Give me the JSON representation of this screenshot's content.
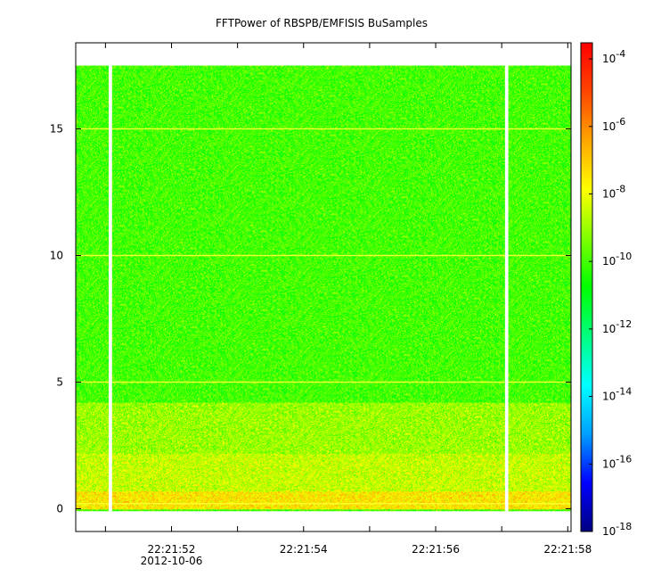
{
  "chart_data": {
    "type": "heatmap",
    "title": "FFTPower of RBSPB/EMFISIS  BuSamples",
    "xlabel": "",
    "ylabel": "",
    "x_ticks": [
      {
        "value": 0.0,
        "label": ""
      },
      {
        "value": 1.0,
        "label": "22:21:52",
        "sublabel": "2012-10-06"
      },
      {
        "value": 2.0,
        "label": ""
      },
      {
        "value": 3.0,
        "label": "22:21:54"
      },
      {
        "value": 4.0,
        "label": ""
      },
      {
        "value": 5.0,
        "label": "22:21:56"
      },
      {
        "value": 6.0,
        "label": ""
      },
      {
        "value": 7.0,
        "label": "22:21:58"
      }
    ],
    "xlim": [
      -0.45,
      7.05
    ],
    "y_ticks": [
      0,
      5,
      10,
      15
    ],
    "ylim": [
      -0.9,
      18.4
    ],
    "data_extent": {
      "x": [
        -0.45,
        7.05
      ],
      "y": [
        -0.1,
        17.5
      ]
    },
    "data_gaps_x": [
      [
        0.05,
        0.1
      ],
      [
        6.05,
        6.1
      ]
    ],
    "horizontal_lines_y": [
      0.2,
      5.0,
      10.0,
      15.0
    ],
    "value_bands": [
      {
        "y": [
          0.0,
          0.7
        ],
        "dominant": "orange-red",
        "log10_power": -7.5
      },
      {
        "y": [
          0.7,
          2.2
        ],
        "dominant": "yellow-orange",
        "log10_power": -8.5
      },
      {
        "y": [
          2.2,
          4.2
        ],
        "dominant": "yellow",
        "log10_power": -9.0
      },
      {
        "y": [
          4.2,
          17.5
        ],
        "dominant": "green",
        "log10_power": -10.0
      }
    ],
    "colorbar": {
      "scale": "log",
      "range": [
        1e-18,
        0.0003
      ],
      "ticks": [
        {
          "base": "10",
          "exp": "-4",
          "value": 0.0001
        },
        {
          "base": "10",
          "exp": "-6",
          "value": 1e-06
        },
        {
          "base": "10",
          "exp": "-8",
          "value": 1e-08
        },
        {
          "base": "10",
          "exp": "-10",
          "value": 1e-10
        },
        {
          "base": "10",
          "exp": "-12",
          "value": 1e-12
        },
        {
          "base": "10",
          "exp": "-14",
          "value": 1e-14
        },
        {
          "base": "10",
          "exp": "-16",
          "value": 1e-16
        },
        {
          "base": "10",
          "exp": "-18",
          "value": 1e-18
        }
      ],
      "colors": [
        "#000080",
        "#0000ff",
        "#00a0ff",
        "#00ffff",
        "#00ff7f",
        "#00ff00",
        "#7fff00",
        "#ffff00",
        "#ffa500",
        "#ff4500",
        "#ff0000"
      ]
    }
  }
}
